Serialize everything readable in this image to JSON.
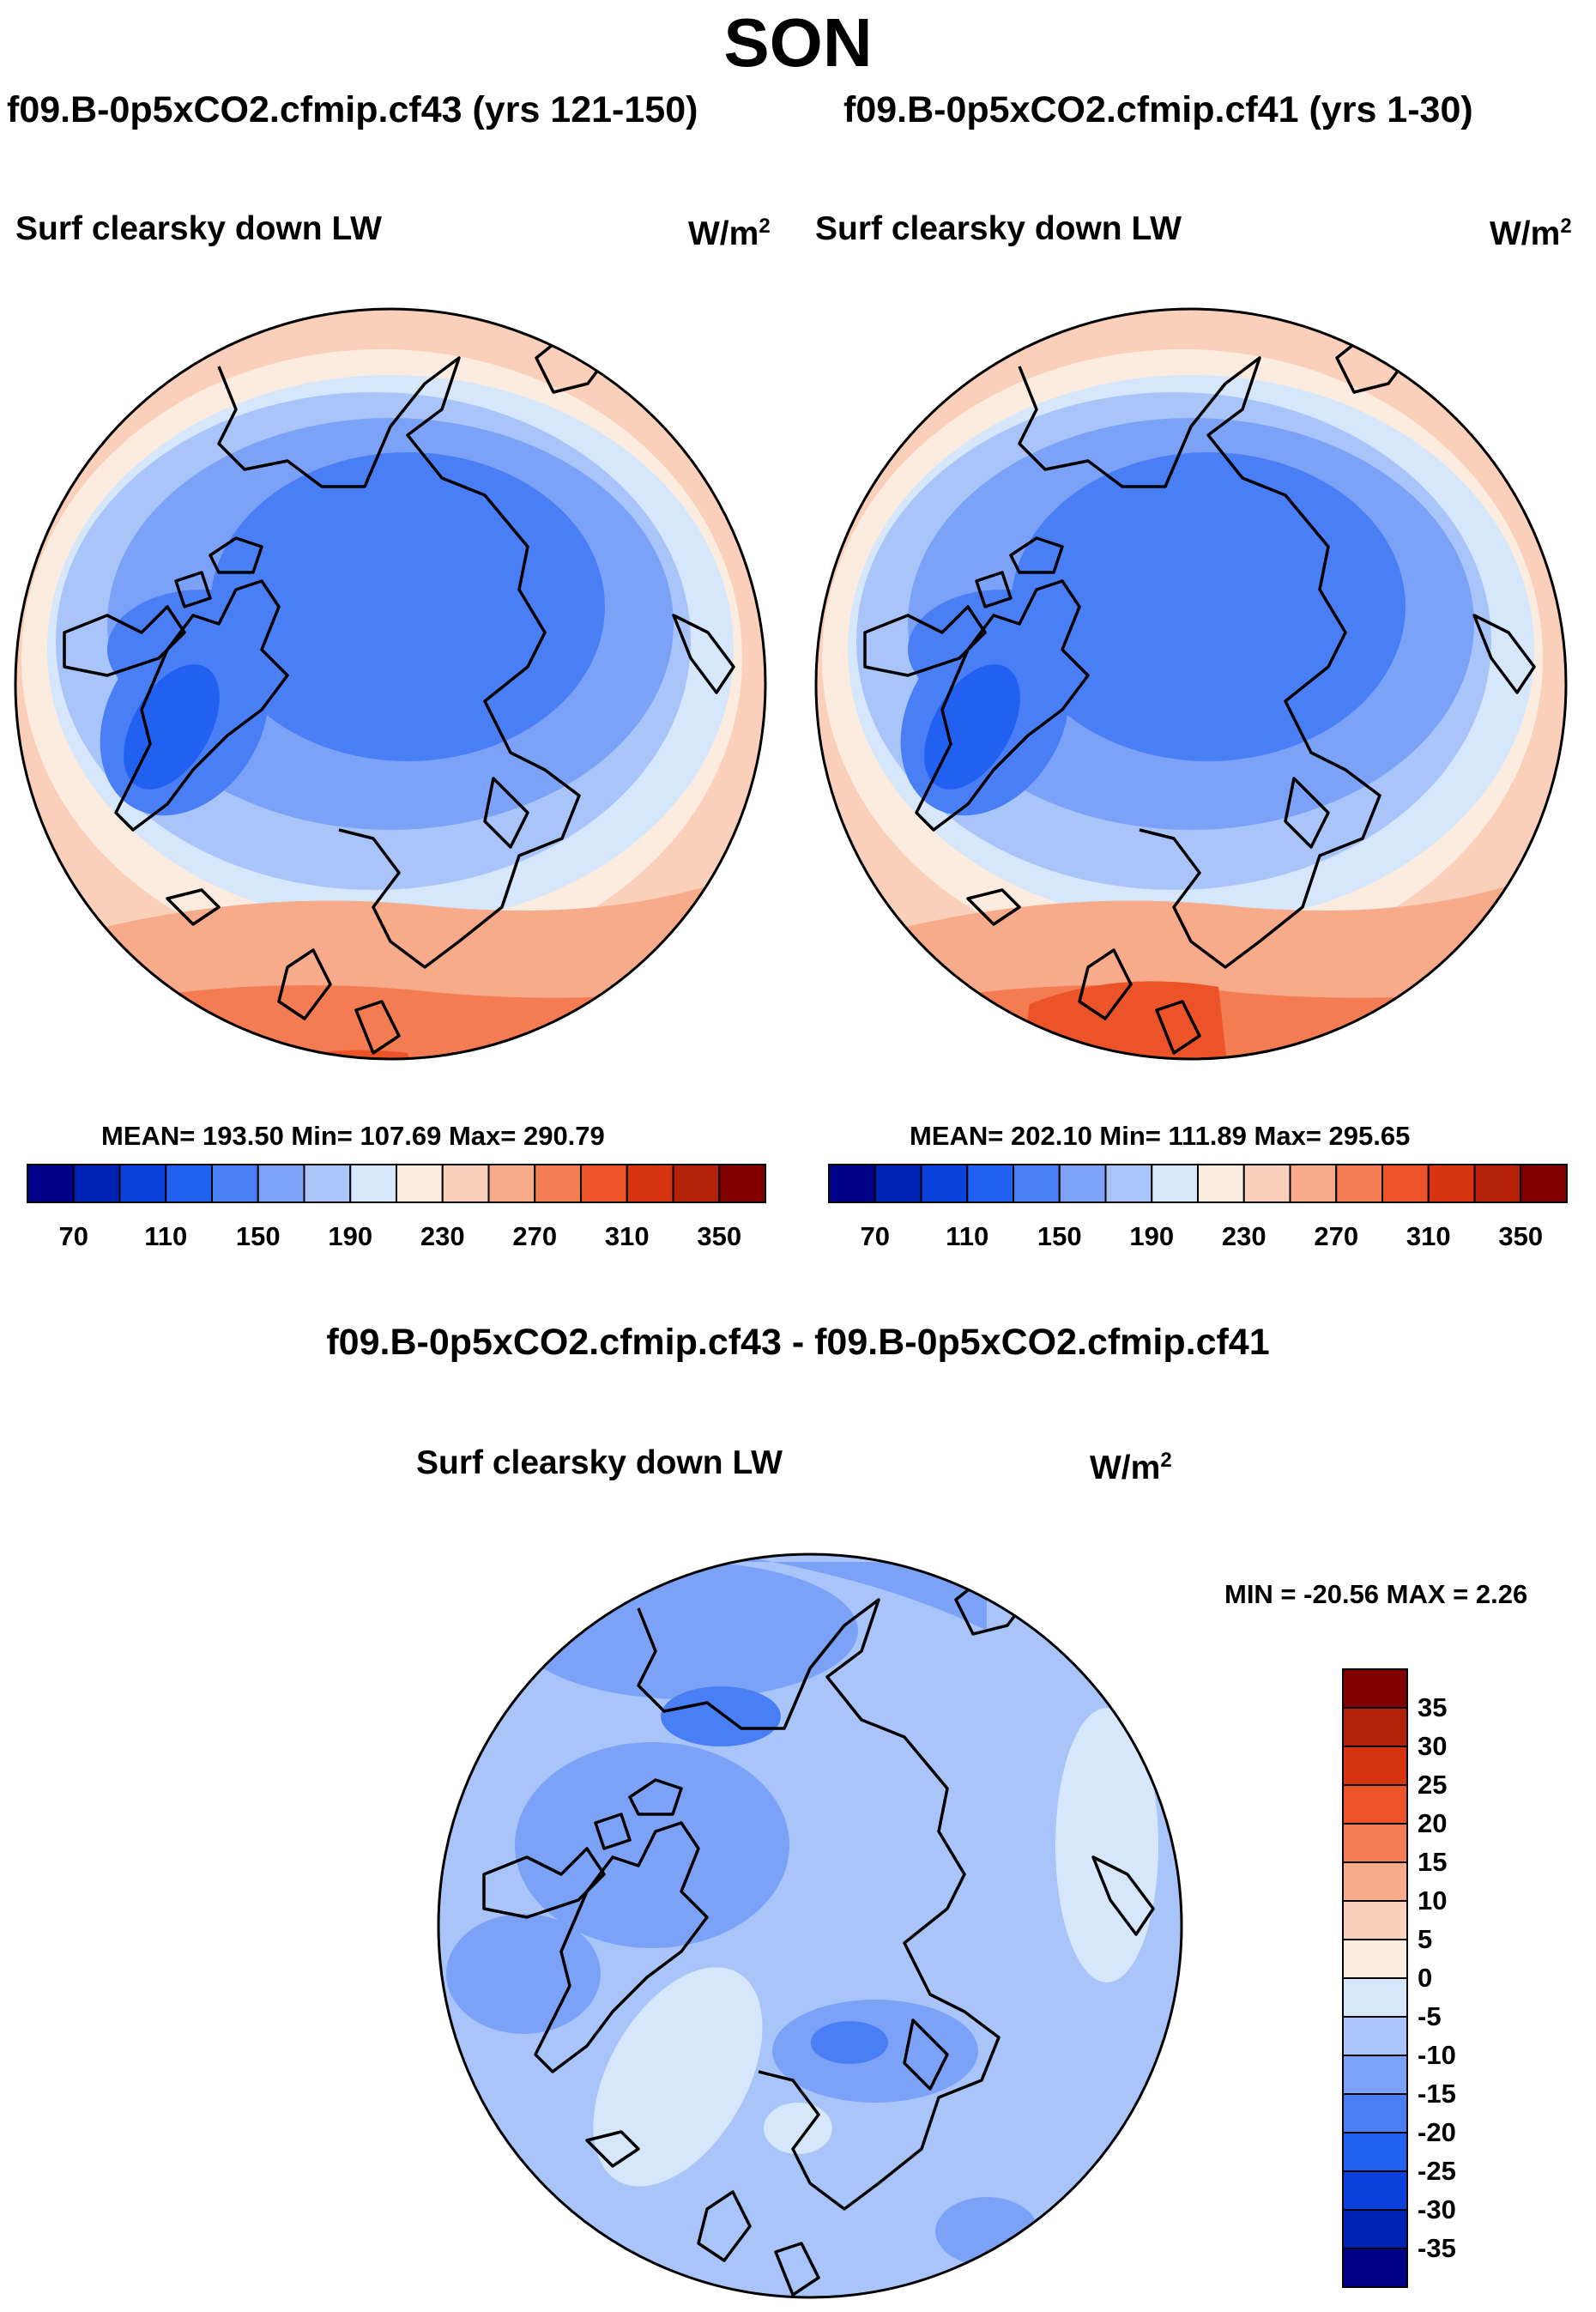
{
  "title": "SON",
  "panels": [
    {
      "run_title": "f09.B-0p5xCO2.cfmip.cf43 (yrs 121-150)",
      "variable": "Surf clearsky down LW",
      "units": "W/m",
      "units_superscript": "2",
      "stats": "MEAN= 193.50  Min= 107.69  Max= 290.79"
    },
    {
      "run_title": "f09.B-0p5xCO2.cfmip.cf41 (yrs 1-30)",
      "variable": "Surf clearsky down LW",
      "units": "W/m",
      "units_superscript": "2",
      "stats": "MEAN= 202.10  Min= 111.89  Max= 295.65"
    }
  ],
  "difference": {
    "title": "f09.B-0p5xCO2.cfmip.cf43 - f09.B-0p5xCO2.cfmip.cf41",
    "variable": "Surf clearsky down LW",
    "units": "W/m",
    "units_superscript": "2",
    "stats": "MIN = -20.56 MAX =   2.26"
  },
  "chart_data": [
    {
      "type": "heatmap",
      "projection": "north-polar stereographic",
      "title": "f09.B-0p5xCO2.cfmip.cf43 (yrs 121-150)",
      "variable": "Surf clearsky down LW",
      "units": "W/m2",
      "colorbar": {
        "orientation": "horizontal",
        "tick_labels": [
          "70",
          "110",
          "150",
          "190",
          "230",
          "270",
          "310",
          "350"
        ],
        "colors": [
          "#00008b",
          "#0022b4",
          "#0b42dc",
          "#2260f2",
          "#4a7ef4",
          "#7ba2f6",
          "#a9c4f9",
          "#d6e6fb",
          "#fcecdf",
          "#fbd0ba",
          "#f8ab8a",
          "#f47c52",
          "#ec5328",
          "#d6350f",
          "#b52008",
          "#800000"
        ]
      },
      "mean": 193.5,
      "min": 107.69,
      "max": 290.79
    },
    {
      "type": "heatmap",
      "projection": "north-polar stereographic",
      "title": "f09.B-0p5xCO2.cfmip.cf41 (yrs 1-30)",
      "variable": "Surf clearsky down LW",
      "units": "W/m2",
      "colorbar": {
        "orientation": "horizontal",
        "tick_labels": [
          "70",
          "110",
          "150",
          "190",
          "230",
          "270",
          "310",
          "350"
        ],
        "colors": [
          "#00008b",
          "#0022b4",
          "#0b42dc",
          "#2260f2",
          "#4a7ef4",
          "#7ba2f6",
          "#a9c4f9",
          "#d6e6fb",
          "#fcecdf",
          "#fbd0ba",
          "#f8ab8a",
          "#f47c52",
          "#ec5328",
          "#d6350f",
          "#b52008",
          "#800000"
        ]
      },
      "mean": 202.1,
      "min": 111.89,
      "max": 295.65
    },
    {
      "type": "heatmap",
      "projection": "north-polar stereographic",
      "title": "f09.B-0p5xCO2.cfmip.cf43 - f09.B-0p5xCO2.cfmip.cf41",
      "variable": "Surf clearsky down LW",
      "units": "W/m2",
      "colorbar": {
        "orientation": "vertical",
        "tick_labels": [
          "35",
          "30",
          "25",
          "20",
          "15",
          "10",
          "5",
          "0",
          "-5",
          "-10",
          "-15",
          "-20",
          "-25",
          "-30",
          "-35"
        ],
        "colors": [
          "#800000",
          "#b52008",
          "#d6350f",
          "#ec5328",
          "#f47c52",
          "#f8ab8a",
          "#fbd0ba",
          "#fcecdf",
          "#d6e6fb",
          "#a9c4f9",
          "#7ba2f6",
          "#4a7ef4",
          "#2260f2",
          "#0b42dc",
          "#0022b4",
          "#00008b"
        ]
      },
      "min": -20.56,
      "max": 2.26
    }
  ]
}
